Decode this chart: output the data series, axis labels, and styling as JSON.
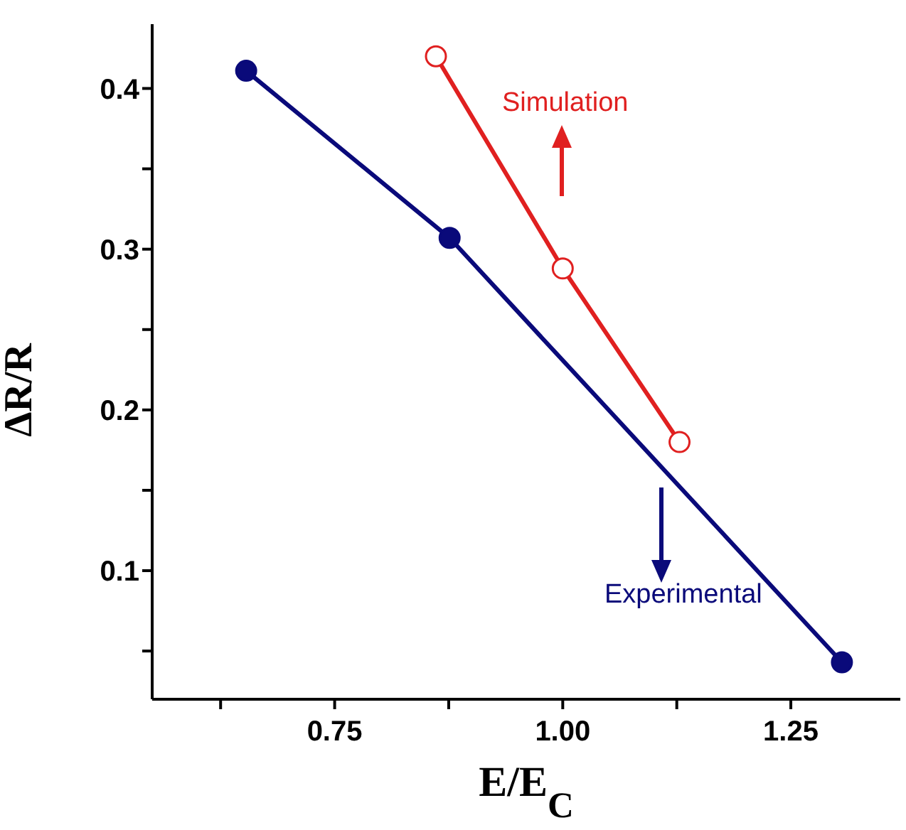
{
  "chart_data": {
    "type": "line",
    "xlabel": "E/E$_{C}$",
    "ylabel": "ΔR/R",
    "xlim": [
      0.55,
      1.37
    ],
    "ylim": [
      0.02,
      0.44
    ],
    "xticks": [
      {
        "value": 0.625,
        "label": null
      },
      0.75,
      {
        "value": 0.875,
        "label": null
      },
      {
        "value": 1,
        "label": "1.00"
      },
      {
        "value": 1.125,
        "label": null
      },
      1.25
    ],
    "yticks": [
      {
        "value": 0.05,
        "label": null
      },
      0.1,
      {
        "value": 0.15,
        "label": null
      },
      0.2,
      {
        "value": 0.25,
        "label": null
      },
      0.3,
      {
        "value": 0.35,
        "label": null
      },
      0.4
    ],
    "marker": "circle",
    "line_style": "solid",
    "grid": false,
    "legend": "right",
    "series": [
      {
        "name": "Experimental",
        "color": "#0a0a7a",
        "x": [
          0.653,
          0.876,
          1.306
        ],
        "values": [
          0.411,
          0.307,
          0.043
        ]
      },
      {
        "name": "Simulation",
        "color": "#e02020",
        "x": [
          0.861,
          1.0,
          1.128
        ],
        "values": [
          0.42,
          0.288,
          0.18
        ]
      }
    ]
  }
}
